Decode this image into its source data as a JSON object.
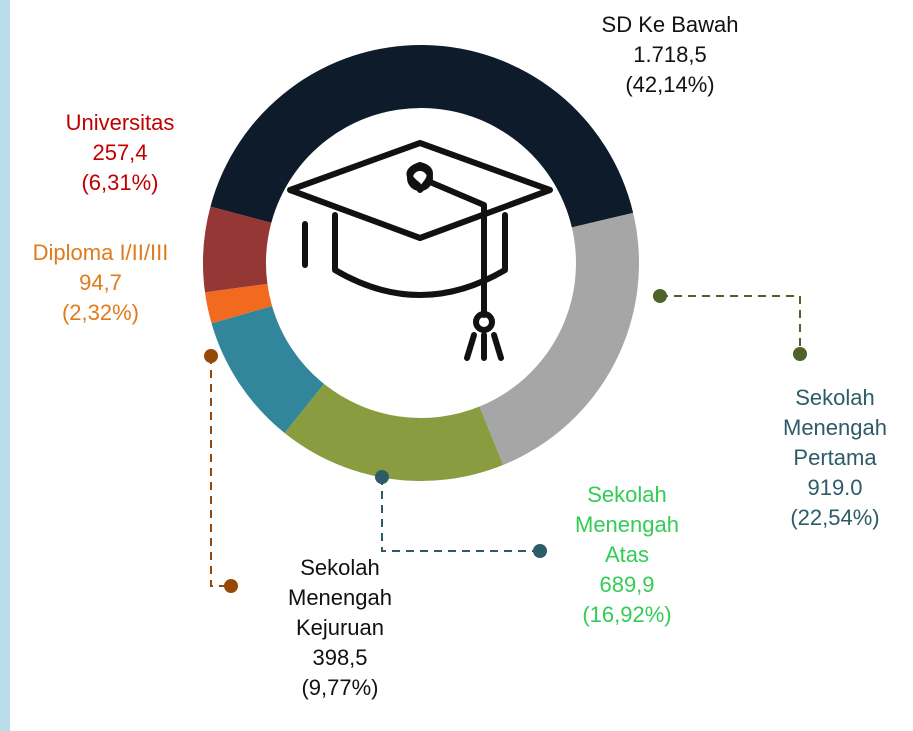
{
  "chart_data": {
    "type": "donut",
    "categories": [
      "SD Ke Bawah",
      "Sekolah Menengah Pertama",
      "Sekolah Menengah Atas",
      "Sekolah Menengah Kejuruan",
      "Diploma I/II/III",
      "Universitas"
    ],
    "values": [
      1718.5,
      919.0,
      689.9,
      398.5,
      94.7,
      257.4
    ],
    "value_labels": [
      "1.718,5",
      "919.0",
      "689,9",
      "398,5",
      "94,7",
      "257,4"
    ],
    "percentages": [
      42.14,
      22.54,
      16.92,
      9.77,
      2.32,
      6.31
    ],
    "percentage_labels": [
      "(42,14%)",
      "(22,54%)",
      "(16,92%)",
      "(9,77%)",
      "(2,32%)",
      "(6,31%)"
    ],
    "colors": [
      "#0d1b2a",
      "#a6a6a6",
      "#8a9c40",
      "#31869c",
      "#f26a1f",
      "#953735"
    ],
    "label_colors": [
      "#111111",
      "#2c5c68",
      "#33cc55",
      "#111111",
      "#e07a1a",
      "#c00000"
    ]
  }
}
